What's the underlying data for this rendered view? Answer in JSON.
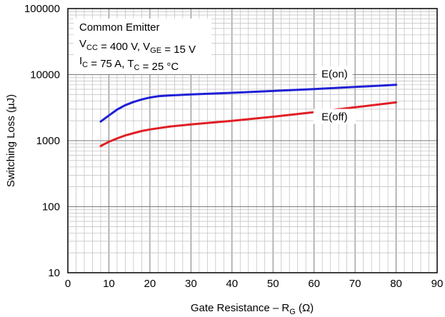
{
  "chart_data": {
    "type": "line",
    "x_scale": "linear",
    "y_scale": "log",
    "xlim": [
      0,
      90
    ],
    "ylim": [
      10,
      100000
    ],
    "grid": true,
    "x_ticks": [
      "0",
      "10",
      "20",
      "30",
      "40",
      "50",
      "60",
      "70",
      "80",
      "90"
    ],
    "y_ticks": [
      "10",
      "100",
      "1000",
      "10000",
      "100000"
    ],
    "xlabel": {
      "prefix": "Gate Resistance – R",
      "sub": "G",
      "suffix": " (Ω)"
    },
    "ylabel": "Switching Loss (µJ)",
    "conditions": [
      "Common Emitter",
      [
        {
          "t": "V"
        },
        {
          "t": "CC",
          "sub": true
        },
        {
          "t": " = 400 V, V"
        },
        {
          "t": "GE",
          "sub": true
        },
        {
          "t": " = 15 V"
        }
      ],
      [
        {
          "t": "I"
        },
        {
          "t": "C",
          "sub": true
        },
        {
          "t": " = 75 A, T"
        },
        {
          "t": "C",
          "sub": true
        },
        {
          "t": " = 25 °C"
        }
      ]
    ],
    "series": [
      {
        "name": "E(on)",
        "color": "#1f1fd6",
        "x": [
          8,
          10,
          12,
          14,
          16,
          18,
          20,
          22,
          25,
          30,
          40,
          50,
          60,
          70,
          80
        ],
        "y": [
          1950,
          2400,
          2950,
          3450,
          3850,
          4200,
          4500,
          4700,
          4850,
          5000,
          5300,
          5650,
          6050,
          6500,
          7000
        ]
      },
      {
        "name": "E(off)",
        "color": "#e01f24",
        "x": [
          8,
          10,
          12,
          14,
          16,
          18,
          20,
          25,
          30,
          40,
          50,
          60,
          70,
          80
        ],
        "y": [
          830,
          960,
          1080,
          1200,
          1300,
          1400,
          1480,
          1640,
          1760,
          2000,
          2300,
          2700,
          3200,
          3800
        ]
      }
    ]
  }
}
